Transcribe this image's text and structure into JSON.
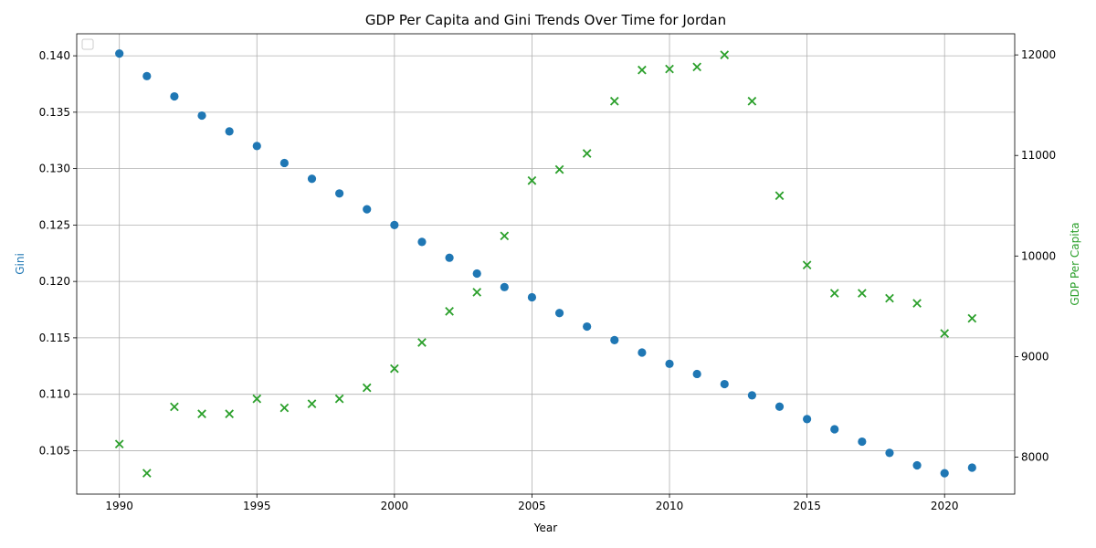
{
  "chart_data": {
    "type": "scatter",
    "title": "GDP Per Capita and Gini Trends Over Time for Jordan",
    "xlabel": "Year",
    "ylabel_left": "Gini",
    "ylabel_right": "GDP Per Capita",
    "xlim": [
      1988.45,
      2022.55
    ],
    "ylim_left": [
      0.10115,
      0.14195
    ],
    "ylim_right": [
      7632,
      12210
    ],
    "x_ticks": [
      1990,
      1995,
      2000,
      2005,
      2010,
      2015,
      2020
    ],
    "y_ticks_left": [
      0.105,
      0.11,
      0.115,
      0.12,
      0.125,
      0.13,
      0.135,
      0.14
    ],
    "y_ticks_right": [
      8000,
      9000,
      10000,
      11000,
      12000
    ],
    "grid": true,
    "legend": "top-left (empty)",
    "colors": {
      "gini": "#1f77b4",
      "gdp": "#2ca02c"
    },
    "x": [
      1990,
      1991,
      1992,
      1993,
      1994,
      1995,
      1996,
      1997,
      1998,
      1999,
      2000,
      2001,
      2002,
      2003,
      2004,
      2005,
      2006,
      2007,
      2008,
      2009,
      2010,
      2011,
      2012,
      2013,
      2014,
      2015,
      2016,
      2017,
      2018,
      2019,
      2020,
      2021
    ],
    "series": [
      {
        "axis": "left",
        "marker": "circle",
        "values": [
          0.1402,
          0.1382,
          0.1364,
          0.1347,
          0.1333,
          0.132,
          0.1305,
          0.1291,
          0.1278,
          0.1264,
          0.125,
          0.1235,
          0.1221,
          0.1207,
          0.1195,
          0.1186,
          0.1172,
          0.116,
          0.1148,
          0.1137,
          0.1127,
          0.1118,
          0.1109,
          0.1099,
          0.1089,
          0.1078,
          0.1069,
          0.1058,
          0.1048,
          0.1037,
          0.103,
          0.1035
        ]
      },
      {
        "axis": "right",
        "marker": "x",
        "values": [
          8130,
          7840,
          8500,
          8430,
          8430,
          8580,
          8490,
          8530,
          8580,
          8690,
          8880,
          9140,
          9450,
          9640,
          10200,
          10750,
          10860,
          11020,
          11540,
          11850,
          11860,
          11880,
          12000,
          11540,
          10600,
          9910,
          9630,
          9630,
          9580,
          9530,
          9230,
          9380
        ]
      }
    ]
  }
}
